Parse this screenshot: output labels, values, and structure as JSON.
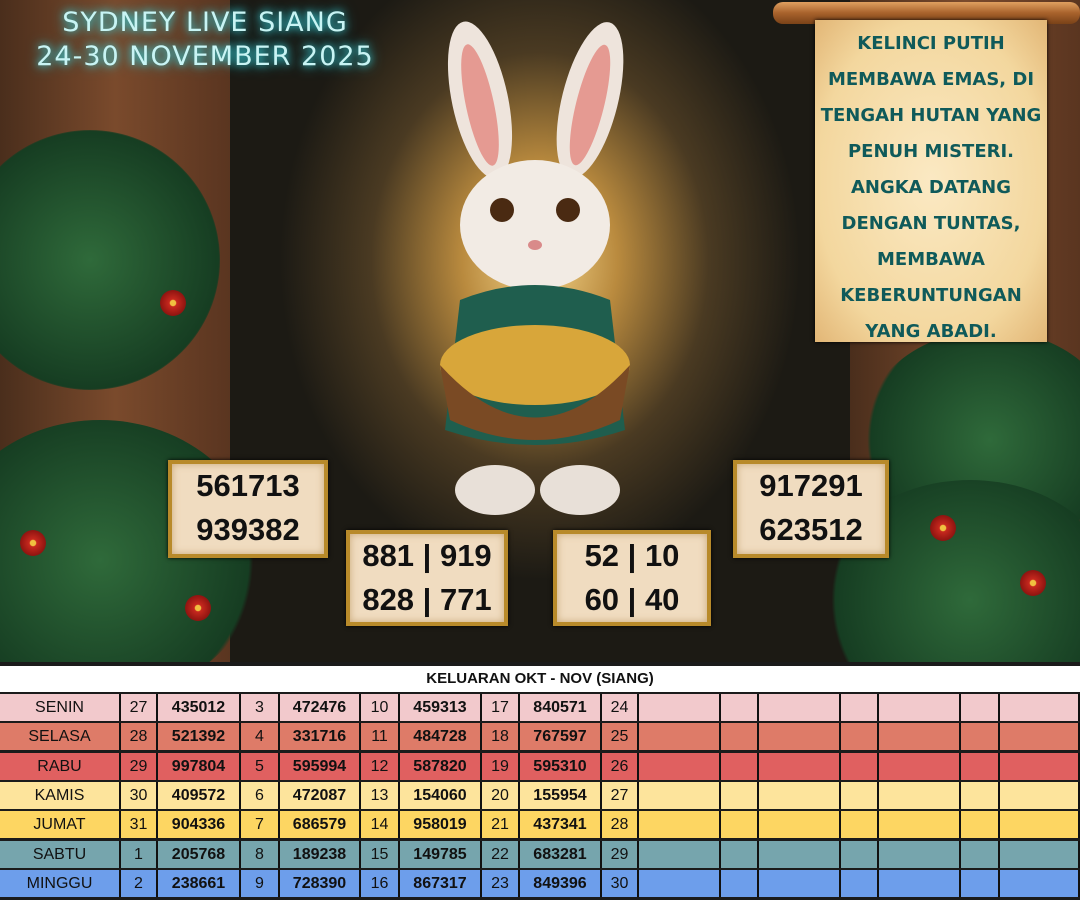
{
  "header": {
    "title_line1": "SYDNEY LIVE SIANG",
    "title_line2": "24-30 NOVEMBER 2025"
  },
  "scroll": {
    "lines": [
      "KELINCI PUTIH",
      "MEMBAWA EMAS, DI",
      "TENGAH HUTAN YANG",
      "PENUH MISTERI.",
      "ANGKA DATANG",
      "DENGAN TUNTAS,",
      "MEMBAWA",
      "KEBERUNTUNGAN",
      "YANG ABADI."
    ]
  },
  "panels": {
    "left": [
      "561713",
      "939382"
    ],
    "center_left": [
      "881 | 919",
      "828 | 771"
    ],
    "center_right": [
      "52 | 10",
      "60 | 40"
    ],
    "right": [
      "917291",
      "623512"
    ]
  },
  "table": {
    "title": "KELUARAN OKT - NOV (SIANG)",
    "rows": [
      {
        "day": "SENIN",
        "color": "#f2c9cc",
        "cells": [
          "27",
          "435012",
          "3",
          "472476",
          "10",
          "459313",
          "17",
          "840571",
          "24",
          "",
          "",
          "",
          "",
          "",
          "",
          ""
        ]
      },
      {
        "day": "SELASA",
        "color": "#de7b68",
        "cells": [
          "28",
          "521392",
          "4",
          "331716",
          "11",
          "484728",
          "18",
          "767597",
          "25",
          "",
          "",
          "",
          "",
          "",
          "",
          ""
        ]
      },
      {
        "day": "RABU",
        "color": "#e06060",
        "cells": [
          "29",
          "997804",
          "5",
          "595994",
          "12",
          "587820",
          "19",
          "595310",
          "26",
          "",
          "",
          "",
          "",
          "",
          "",
          ""
        ]
      },
      {
        "day": "KAMIS",
        "color": "#fde49c",
        "cells": [
          "30",
          "409572",
          "6",
          "472087",
          "13",
          "154060",
          "20",
          "155954",
          "27",
          "",
          "",
          "",
          "",
          "",
          "",
          ""
        ]
      },
      {
        "day": "JUMAT",
        "color": "#fdd662",
        "cells": [
          "31",
          "904336",
          "7",
          "686579",
          "14",
          "958019",
          "21",
          "437341",
          "28",
          "",
          "",
          "",
          "",
          "",
          "",
          ""
        ]
      },
      {
        "day": "SABTU",
        "color": "#76a5ad",
        "cells": [
          "1",
          "205768",
          "8",
          "189238",
          "15",
          "149785",
          "22",
          "683281",
          "29",
          "",
          "",
          "",
          "",
          "",
          "",
          ""
        ]
      },
      {
        "day": "MINGGU",
        "color": "#6d9eeb",
        "cells": [
          "2",
          "238661",
          "9",
          "728390",
          "16",
          "867317",
          "23",
          "849396",
          "30",
          "",
          "",
          "",
          "",
          "",
          "",
          ""
        ]
      }
    ]
  }
}
